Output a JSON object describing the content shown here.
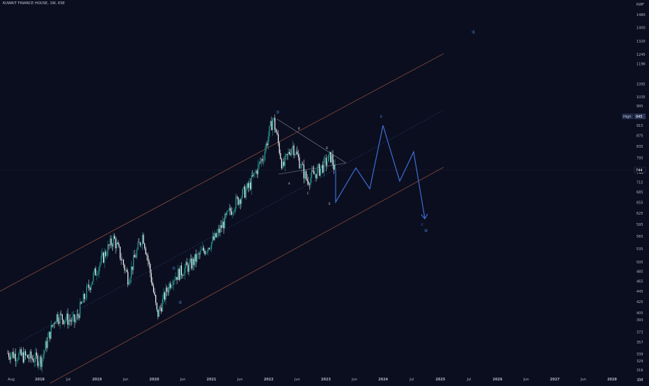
{
  "header": {
    "symbol_title": "KUWAIT FINANCE HOUSE, 1W, KSE"
  },
  "colors": {
    "background": "#0b0e1f",
    "candle_up": "#26a69a",
    "candle_down": "#ffffff",
    "channel_line": "#8a4a3c",
    "midline": "#2a3a66",
    "projection": "#3d6fd6",
    "wave_label": "#4a8ad8",
    "axis_text": "#b0b4c2"
  },
  "price_axis": {
    "currency": "KWF",
    "ticks": [
      "1480",
      "1400",
      "1320",
      "1245",
      "1196",
      "1095",
      "1035",
      "995",
      "945",
      "915",
      "875",
      "835",
      "795",
      "755",
      "744",
      "715",
      "685",
      "655",
      "625",
      "595",
      "565",
      "535",
      "505",
      "485",
      "465",
      "445",
      "425",
      "405",
      "393",
      "373",
      "357",
      "339",
      "329",
      "316",
      "303"
    ]
  },
  "badges": {
    "high_label": "High",
    "high_value": "945",
    "last_value": "744"
  },
  "time_axis": {
    "labels": [
      "Aug",
      "2018",
      "Jul",
      "2019",
      "Jun",
      "2020",
      "Jun",
      "2021",
      "Jun",
      "2022",
      "Jun",
      "2023",
      "Jun",
      "2024",
      "Jul",
      "2025",
      "Jul",
      "2026",
      "Jun",
      "2027",
      "Jun",
      "2028",
      "Jul"
    ]
  },
  "wave_labels": {
    "w1_top": "①",
    "w2_low": "②",
    "w3_top": "③",
    "w4_target": "④",
    "w5_target": "⑤",
    "corr_a": "A",
    "corr_b": "B",
    "corr_c": "C",
    "corr_d": "D",
    "corr_e": "E",
    "proj_b": "B",
    "proj_c": "C"
  },
  "chart_data": {
    "type": "candlestick",
    "title": "KUWAIT FINANCE HOUSE, 1W, KSE",
    "interval": "1W",
    "currency": "KWF",
    "y_scale": "log",
    "price_range": [
      303,
      1480
    ],
    "x_range": [
      "2017-08",
      "2028-07"
    ],
    "high_marker": 945,
    "last_price": 744,
    "approx_close_path": [
      {
        "date": "2017-08",
        "close": 340
      },
      {
        "date": "2018-03",
        "close": 330
      },
      {
        "date": "2018-06",
        "close": 400
      },
      {
        "date": "2018-10",
        "close": 390
      },
      {
        "date": "2019-02",
        "close": 480
      },
      {
        "date": "2019-06",
        "close": 560
      },
      {
        "date": "2019-09",
        "close": 470
      },
      {
        "date": "2019-12",
        "close": 570
      },
      {
        "date": "2020-03",
        "close": 400
      },
      {
        "date": "2020-06",
        "close": 470
      },
      {
        "date": "2020-10",
        "close": 500
      },
      {
        "date": "2021-03",
        "close": 560
      },
      {
        "date": "2021-07",
        "close": 650
      },
      {
        "date": "2021-10",
        "close": 700
      },
      {
        "date": "2022-01",
        "close": 800
      },
      {
        "date": "2022-03",
        "close": 945
      },
      {
        "date": "2022-05",
        "close": 760
      },
      {
        "date": "2022-07",
        "close": 840
      },
      {
        "date": "2022-10",
        "close": 720
      },
      {
        "date": "2023-01",
        "close": 760
      },
      {
        "date": "2023-03",
        "close": 800
      },
      {
        "date": "2023-04",
        "close": 744
      }
    ],
    "projection_path": [
      {
        "date": "2023-04",
        "price": 744
      },
      {
        "date": "2023-05",
        "price": 650
      },
      {
        "date": "2023-08",
        "price": 740
      },
      {
        "date": "2023-11",
        "price": 685
      },
      {
        "date": "2024-02",
        "price": 905
      },
      {
        "date": "2024-06",
        "price": 710
      },
      {
        "date": "2024-09",
        "price": 785
      },
      {
        "date": "2024-12",
        "price": 600
      }
    ]
  }
}
